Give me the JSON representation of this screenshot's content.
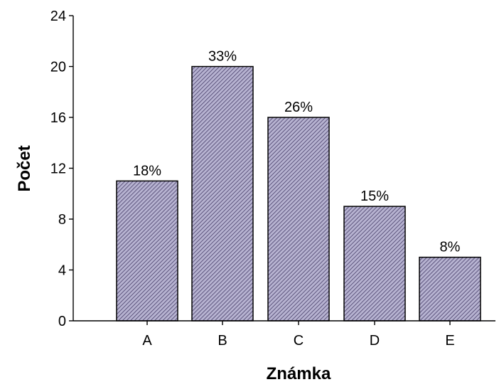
{
  "chart_data": {
    "type": "bar",
    "categories": [
      "A",
      "B",
      "C",
      "D",
      "E"
    ],
    "values": [
      11,
      20,
      16,
      9,
      5
    ],
    "data_labels": [
      "18%",
      "33%",
      "26%",
      "15%",
      "8%"
    ],
    "xlabel": "Známka",
    "ylabel": "Počet",
    "ylim": [
      0,
      24
    ],
    "yticks": [
      "0",
      "4",
      "8",
      "12",
      "16",
      "20",
      "24"
    ],
    "grid": false,
    "legend": "none",
    "colors": {
      "bar_fill": "#b7b3d1",
      "bar_hatch": "#5d557d",
      "bar_stroke": "#000000",
      "axis": "#000000"
    }
  }
}
